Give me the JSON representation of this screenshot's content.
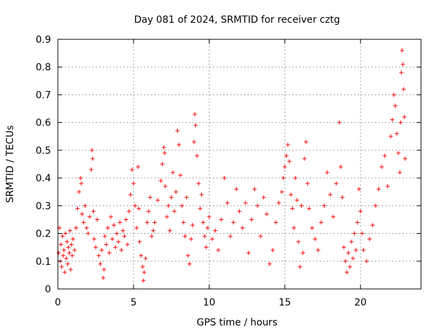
{
  "chart_data": {
    "type": "scatter",
    "title": "Day 081 of 2024, SRMTID for receiver cztg",
    "xlabel": "GPS time / hours",
    "ylabel": "SRMTID / TECUs",
    "xlim": [
      0,
      24
    ],
    "ylim": [
      0,
      0.9
    ],
    "grid": true,
    "marker": "plus",
    "color": "#ff0000",
    "xticks": [
      0,
      5,
      10,
      15,
      20
    ],
    "xtick_labels": [
      "0",
      "5",
      "10",
      "15",
      "20"
    ],
    "yticks": [
      0,
      0.1,
      0.2,
      0.3,
      0.4,
      0.5,
      0.6,
      0.7,
      0.8,
      0.9
    ],
    "ytick_labels": [
      "0",
      "0.1",
      "0.2",
      "0.3",
      "0.4",
      "0.5",
      "0.6",
      "0.7",
      "0.8",
      "0.9"
    ],
    "series": [
      {
        "name": "SRMTID",
        "points": [
          [
            0.05,
            0.13
          ],
          [
            0.1,
            0.22
          ],
          [
            0.15,
            0.1
          ],
          [
            0.2,
            0.16
          ],
          [
            0.25,
            0.08
          ],
          [
            0.3,
            0.19
          ],
          [
            0.35,
            0.12
          ],
          [
            0.4,
            0.14
          ],
          [
            0.45,
            0.06
          ],
          [
            0.5,
            0.2
          ],
          [
            0.55,
            0.11
          ],
          [
            0.6,
            0.17
          ],
          [
            0.65,
            0.09
          ],
          [
            0.7,
            0.15
          ],
          [
            0.75,
            0.13
          ],
          [
            0.8,
            0.21
          ],
          [
            0.85,
            0.07
          ],
          [
            0.9,
            0.16
          ],
          [
            0.95,
            0.12
          ],
          [
            1.0,
            0.18
          ],
          [
            1.1,
            0.14
          ],
          [
            1.2,
            0.22
          ],
          [
            1.3,
            0.29
          ],
          [
            1.4,
            0.35
          ],
          [
            1.5,
            0.4
          ],
          [
            1.55,
            0.38
          ],
          [
            1.6,
            0.27
          ],
          [
            1.7,
            0.24
          ],
          [
            1.8,
            0.3
          ],
          [
            1.9,
            0.22
          ],
          [
            2.0,
            0.2
          ],
          [
            2.1,
            0.26
          ],
          [
            2.2,
            0.43
          ],
          [
            2.25,
            0.5
          ],
          [
            2.3,
            0.47
          ],
          [
            2.35,
            0.28
          ],
          [
            2.4,
            0.18
          ],
          [
            2.5,
            0.15
          ],
          [
            2.6,
            0.25
          ],
          [
            2.7,
            0.12
          ],
          [
            2.8,
            0.09
          ],
          [
            2.9,
            0.14
          ],
          [
            3.0,
            0.04
          ],
          [
            3.05,
            0.07
          ],
          [
            3.1,
            0.19
          ],
          [
            3.2,
            0.16
          ],
          [
            3.3,
            0.22
          ],
          [
            3.4,
            0.13
          ],
          [
            3.5,
            0.26
          ],
          [
            3.6,
            0.18
          ],
          [
            3.7,
            0.23
          ],
          [
            3.8,
            0.15
          ],
          [
            3.9,
            0.2
          ],
          [
            4.0,
            0.17
          ],
          [
            4.1,
            0.24
          ],
          [
            4.2,
            0.14
          ],
          [
            4.3,
            0.21
          ],
          [
            4.4,
            0.19
          ],
          [
            4.5,
            0.25
          ],
          [
            4.6,
            0.16
          ],
          [
            4.7,
            0.28
          ],
          [
            4.8,
            0.34
          ],
          [
            4.9,
            0.43
          ],
          [
            5.0,
            0.38
          ],
          [
            5.1,
            0.3
          ],
          [
            5.2,
            0.22
          ],
          [
            5.3,
            0.44
          ],
          [
            5.35,
            0.29
          ],
          [
            5.4,
            0.17
          ],
          [
            5.5,
            0.12
          ],
          [
            5.6,
            0.08
          ],
          [
            5.65,
            0.03
          ],
          [
            5.7,
            0.06
          ],
          [
            5.8,
            0.11
          ],
          [
            5.9,
            0.24
          ],
          [
            6.0,
            0.28
          ],
          [
            6.1,
            0.33
          ],
          [
            6.2,
            0.19
          ],
          [
            6.3,
            0.21
          ],
          [
            6.4,
            0.24
          ],
          [
            6.6,
            0.32
          ],
          [
            6.8,
            0.39
          ],
          [
            6.9,
            0.45
          ],
          [
            7.0,
            0.51
          ],
          [
            7.05,
            0.49
          ],
          [
            7.1,
            0.37
          ],
          [
            7.2,
            0.26
          ],
          [
            7.3,
            0.3
          ],
          [
            7.4,
            0.21
          ],
          [
            7.5,
            0.33
          ],
          [
            7.6,
            0.42
          ],
          [
            7.7,
            0.28
          ],
          [
            7.8,
            0.35
          ],
          [
            7.9,
            0.57
          ],
          [
            8.0,
            0.52
          ],
          [
            8.1,
            0.41
          ],
          [
            8.2,
            0.3
          ],
          [
            8.3,
            0.24
          ],
          [
            8.4,
            0.19
          ],
          [
            8.5,
            0.33
          ],
          [
            8.6,
            0.12
          ],
          [
            8.7,
            0.09
          ],
          [
            8.8,
            0.18
          ],
          [
            8.9,
            0.23
          ],
          [
            9.0,
            0.53
          ],
          [
            9.05,
            0.63
          ],
          [
            9.1,
            0.59
          ],
          [
            9.2,
            0.48
          ],
          [
            9.3,
            0.38
          ],
          [
            9.4,
            0.29
          ],
          [
            9.5,
            0.34
          ],
          [
            9.6,
            0.24
          ],
          [
            9.7,
            0.19
          ],
          [
            9.8,
            0.15
          ],
          [
            9.9,
            0.22
          ],
          [
            10.0,
            0.26
          ],
          [
            10.2,
            0.18
          ],
          [
            10.4,
            0.21
          ],
          [
            10.6,
            0.14
          ],
          [
            10.8,
            0.25
          ],
          [
            11.0,
            0.4
          ],
          [
            11.2,
            0.31
          ],
          [
            11.4,
            0.19
          ],
          [
            11.6,
            0.24
          ],
          [
            11.8,
            0.36
          ],
          [
            12.0,
            0.28
          ],
          [
            12.2,
            0.22
          ],
          [
            12.4,
            0.31
          ],
          [
            12.6,
            0.13
          ],
          [
            12.8,
            0.25
          ],
          [
            13.0,
            0.36
          ],
          [
            13.2,
            0.3
          ],
          [
            13.4,
            0.19
          ],
          [
            13.6,
            0.33
          ],
          [
            13.8,
            0.27
          ],
          [
            14.0,
            0.09
          ],
          [
            14.2,
            0.14
          ],
          [
            14.4,
            0.24
          ],
          [
            14.6,
            0.31
          ],
          [
            14.8,
            0.35
          ],
          [
            14.9,
            0.4
          ],
          [
            15.0,
            0.44
          ],
          [
            15.1,
            0.48
          ],
          [
            15.2,
            0.52
          ],
          [
            15.3,
            0.46
          ],
          [
            15.4,
            0.34
          ],
          [
            15.5,
            0.29
          ],
          [
            15.6,
            0.22
          ],
          [
            15.7,
            0.4
          ],
          [
            15.8,
            0.32
          ],
          [
            15.9,
            0.17
          ],
          [
            16.0,
            0.08
          ],
          [
            16.1,
            0.3
          ],
          [
            16.2,
            0.13
          ],
          [
            16.3,
            0.47
          ],
          [
            16.4,
            0.53
          ],
          [
            16.5,
            0.38
          ],
          [
            16.6,
            0.29
          ],
          [
            16.8,
            0.22
          ],
          [
            17.0,
            0.18
          ],
          [
            17.2,
            0.14
          ],
          [
            17.4,
            0.24
          ],
          [
            17.6,
            0.3
          ],
          [
            17.8,
            0.42
          ],
          [
            18.0,
            0.34
          ],
          [
            18.2,
            0.26
          ],
          [
            18.4,
            0.38
          ],
          [
            18.6,
            0.6
          ],
          [
            18.7,
            0.44
          ],
          [
            18.8,
            0.33
          ],
          [
            18.9,
            0.15
          ],
          [
            19.0,
            0.1
          ],
          [
            19.1,
            0.06
          ],
          [
            19.2,
            0.13
          ],
          [
            19.3,
            0.08
          ],
          [
            19.4,
            0.17
          ],
          [
            19.5,
            0.11
          ],
          [
            19.6,
            0.2
          ],
          [
            19.7,
            0.14
          ],
          [
            19.8,
            0.24
          ],
          [
            19.9,
            0.36
          ],
          [
            20.0,
            0.28
          ],
          [
            20.1,
            0.2
          ],
          [
            20.2,
            0.14
          ],
          [
            20.4,
            0.1
          ],
          [
            20.6,
            0.18
          ],
          [
            20.8,
            0.23
          ],
          [
            21.0,
            0.3
          ],
          [
            21.2,
            0.36
          ],
          [
            21.4,
            0.44
          ],
          [
            21.6,
            0.48
          ],
          [
            21.8,
            0.37
          ],
          [
            22.0,
            0.55
          ],
          [
            22.1,
            0.61
          ],
          [
            22.2,
            0.7
          ],
          [
            22.3,
            0.66
          ],
          [
            22.4,
            0.56
          ],
          [
            22.5,
            0.49
          ],
          [
            22.6,
            0.42
          ],
          [
            22.65,
            0.6
          ],
          [
            22.7,
            0.78
          ],
          [
            22.75,
            0.86
          ],
          [
            22.8,
            0.81
          ],
          [
            22.85,
            0.72
          ],
          [
            22.9,
            0.62
          ],
          [
            22.95,
            0.47
          ]
        ]
      }
    ]
  }
}
